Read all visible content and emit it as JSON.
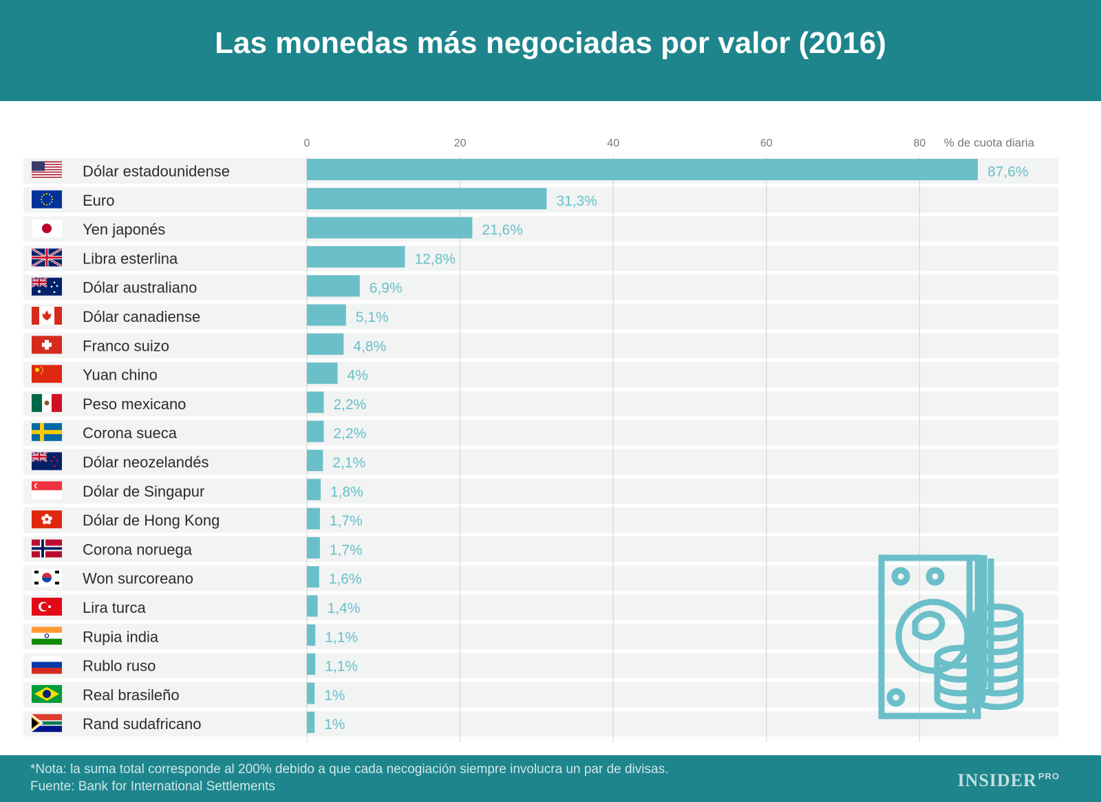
{
  "header": {
    "title": "Las monedas más negociadas por valor (2016)"
  },
  "footer": {
    "note": "*Nota: la suma total corresponde al 200% debido a que cada necogiación siempre involucra un par de divisas.",
    "source": "Fuente: Bank for International Settlements",
    "logo_text": "INSIDER",
    "logo_suffix": "PRO"
  },
  "colors": {
    "header": "#1e858c",
    "bar": "#6abfc9",
    "row_band": "#f2f3f3",
    "value_text": "#66c0c9"
  },
  "chart_data": {
    "type": "bar",
    "orientation": "horizontal",
    "title": "Las monedas más negociadas por valor (2016)",
    "xlabel": "% de cuota diaria",
    "xlim": [
      0,
      98
    ],
    "xticks": [
      0,
      20,
      40,
      60,
      80
    ],
    "grid": true,
    "categories": [
      "Dólar estadounidense",
      "Euro",
      "Yen japonés",
      "Libra esterlina",
      "Dólar australiano",
      "Dólar canadiense",
      "Franco suizo",
      "Yuan chino",
      "Peso mexicano",
      "Corona sueca",
      "Dólar neozelandés",
      "Dólar de Singapur",
      "Dólar de Hong Kong",
      "Corona noruega",
      "Won surcoreano",
      "Lira turca",
      "Rupia india",
      "Rublo ruso",
      "Real brasileño",
      "Rand sudafricano"
    ],
    "values": [
      87.6,
      31.3,
      21.6,
      12.8,
      6.9,
      5.1,
      4.8,
      4,
      2.2,
      2.2,
      2.1,
      1.8,
      1.7,
      1.7,
      1.6,
      1.4,
      1.1,
      1.1,
      1,
      1
    ],
    "value_labels": [
      "87,6%",
      "31,3%",
      "21,6%",
      "12,8%",
      "6,9%",
      "5,1%",
      "4,8%",
      "4%",
      "2,2%",
      "2,2%",
      "2,1%",
      "1,8%",
      "1,7%",
      "1,7%",
      "1,6%",
      "1,4%",
      "1,1%",
      "1,1%",
      "1%",
      "1%"
    ],
    "flags": [
      "us-flag-icon",
      "eu-flag-icon",
      "japan-flag-icon",
      "uk-flag-icon",
      "australia-flag-icon",
      "canada-flag-icon",
      "switzerland-flag-icon",
      "china-flag-icon",
      "mexico-flag-icon",
      "sweden-flag-icon",
      "new-zealand-flag-icon",
      "singapore-flag-icon",
      "hong-kong-flag-icon",
      "norway-flag-icon",
      "south-korea-flag-icon",
      "turkey-flag-icon",
      "india-flag-icon",
      "russia-flag-icon",
      "brazil-flag-icon",
      "south-africa-flag-icon"
    ]
  }
}
